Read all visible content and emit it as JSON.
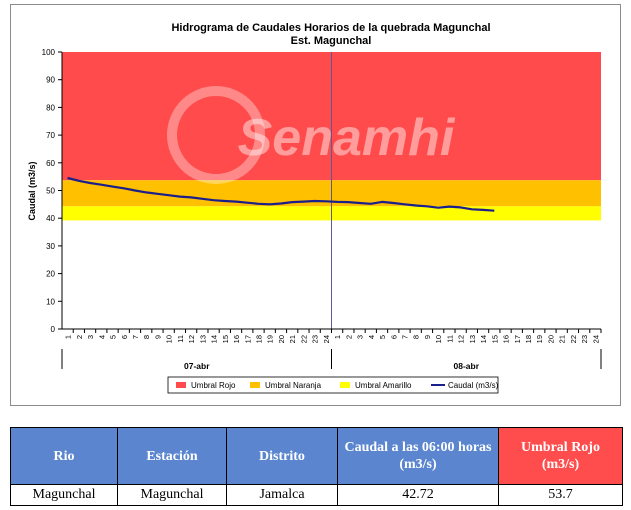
{
  "chart_data": {
    "type": "line",
    "title": "Hidrograma de Caudales Horarios de la quebrada Magunchal",
    "subtitle": "Est. Magunchal",
    "ylabel": "Caudal (m3/s)",
    "ylim": [
      0,
      100
    ],
    "yticks": [
      "0",
      "10",
      "20",
      "30",
      "40",
      "50",
      "60",
      "70",
      "80",
      "90",
      "100"
    ],
    "xticks": [
      "1",
      "2",
      "3",
      "4",
      "5",
      "6",
      "7",
      "8",
      "9",
      "10",
      "11",
      "12",
      "13",
      "14",
      "15",
      "16",
      "17",
      "18",
      "19",
      "20",
      "21",
      "22",
      "23",
      "24",
      "1",
      "2",
      "3",
      "4",
      "5",
      "6",
      "7",
      "8",
      "9",
      "10",
      "11",
      "12",
      "13",
      "14",
      "15",
      "16",
      "17",
      "18",
      "19",
      "20",
      "21",
      "22",
      "23",
      "24"
    ],
    "day_labels": [
      "07-abr",
      "08-abr"
    ],
    "thresholds": [
      {
        "name": "Umbral Rojo",
        "from": 53.7,
        "to": 100,
        "color": "#ff4b4b"
      },
      {
        "name": "Umbral Naranja",
        "from": 44.3,
        "to": 53.7,
        "color": "#ffc000"
      },
      {
        "name": "Umbral Amarillo",
        "from": 39.2,
        "to": 44.3,
        "color": "#ffff00"
      }
    ],
    "series": [
      {
        "name": "Caudal (m3/s)",
        "color": "#1a1f8c",
        "values": [
          54.5,
          53.5,
          52.7,
          52.1,
          51.4,
          50.8,
          50.0,
          49.3,
          48.8,
          48.3,
          47.8,
          47.5,
          47.0,
          46.5,
          46.2,
          46.0,
          45.6,
          45.2,
          45.0,
          45.3,
          45.8,
          46.0,
          46.2,
          46.1,
          45.9,
          45.8,
          45.5,
          45.2,
          45.9,
          45.5,
          45.0,
          44.6,
          44.3,
          43.8,
          44.2,
          43.9,
          43.2,
          43.0,
          42.72
        ]
      }
    ],
    "grid": true,
    "legend": "bottom",
    "watermark": "Senamhi"
  },
  "table": {
    "headers": [
      "Rio",
      "Estación",
      "Distrito",
      "Caudal a las 06:00 horas (m3/s)",
      "Umbral Rojo (m3/s)"
    ],
    "row": [
      "Magunchal",
      "Magunchal",
      "Jamalca",
      "42.72",
      "53.7"
    ]
  }
}
